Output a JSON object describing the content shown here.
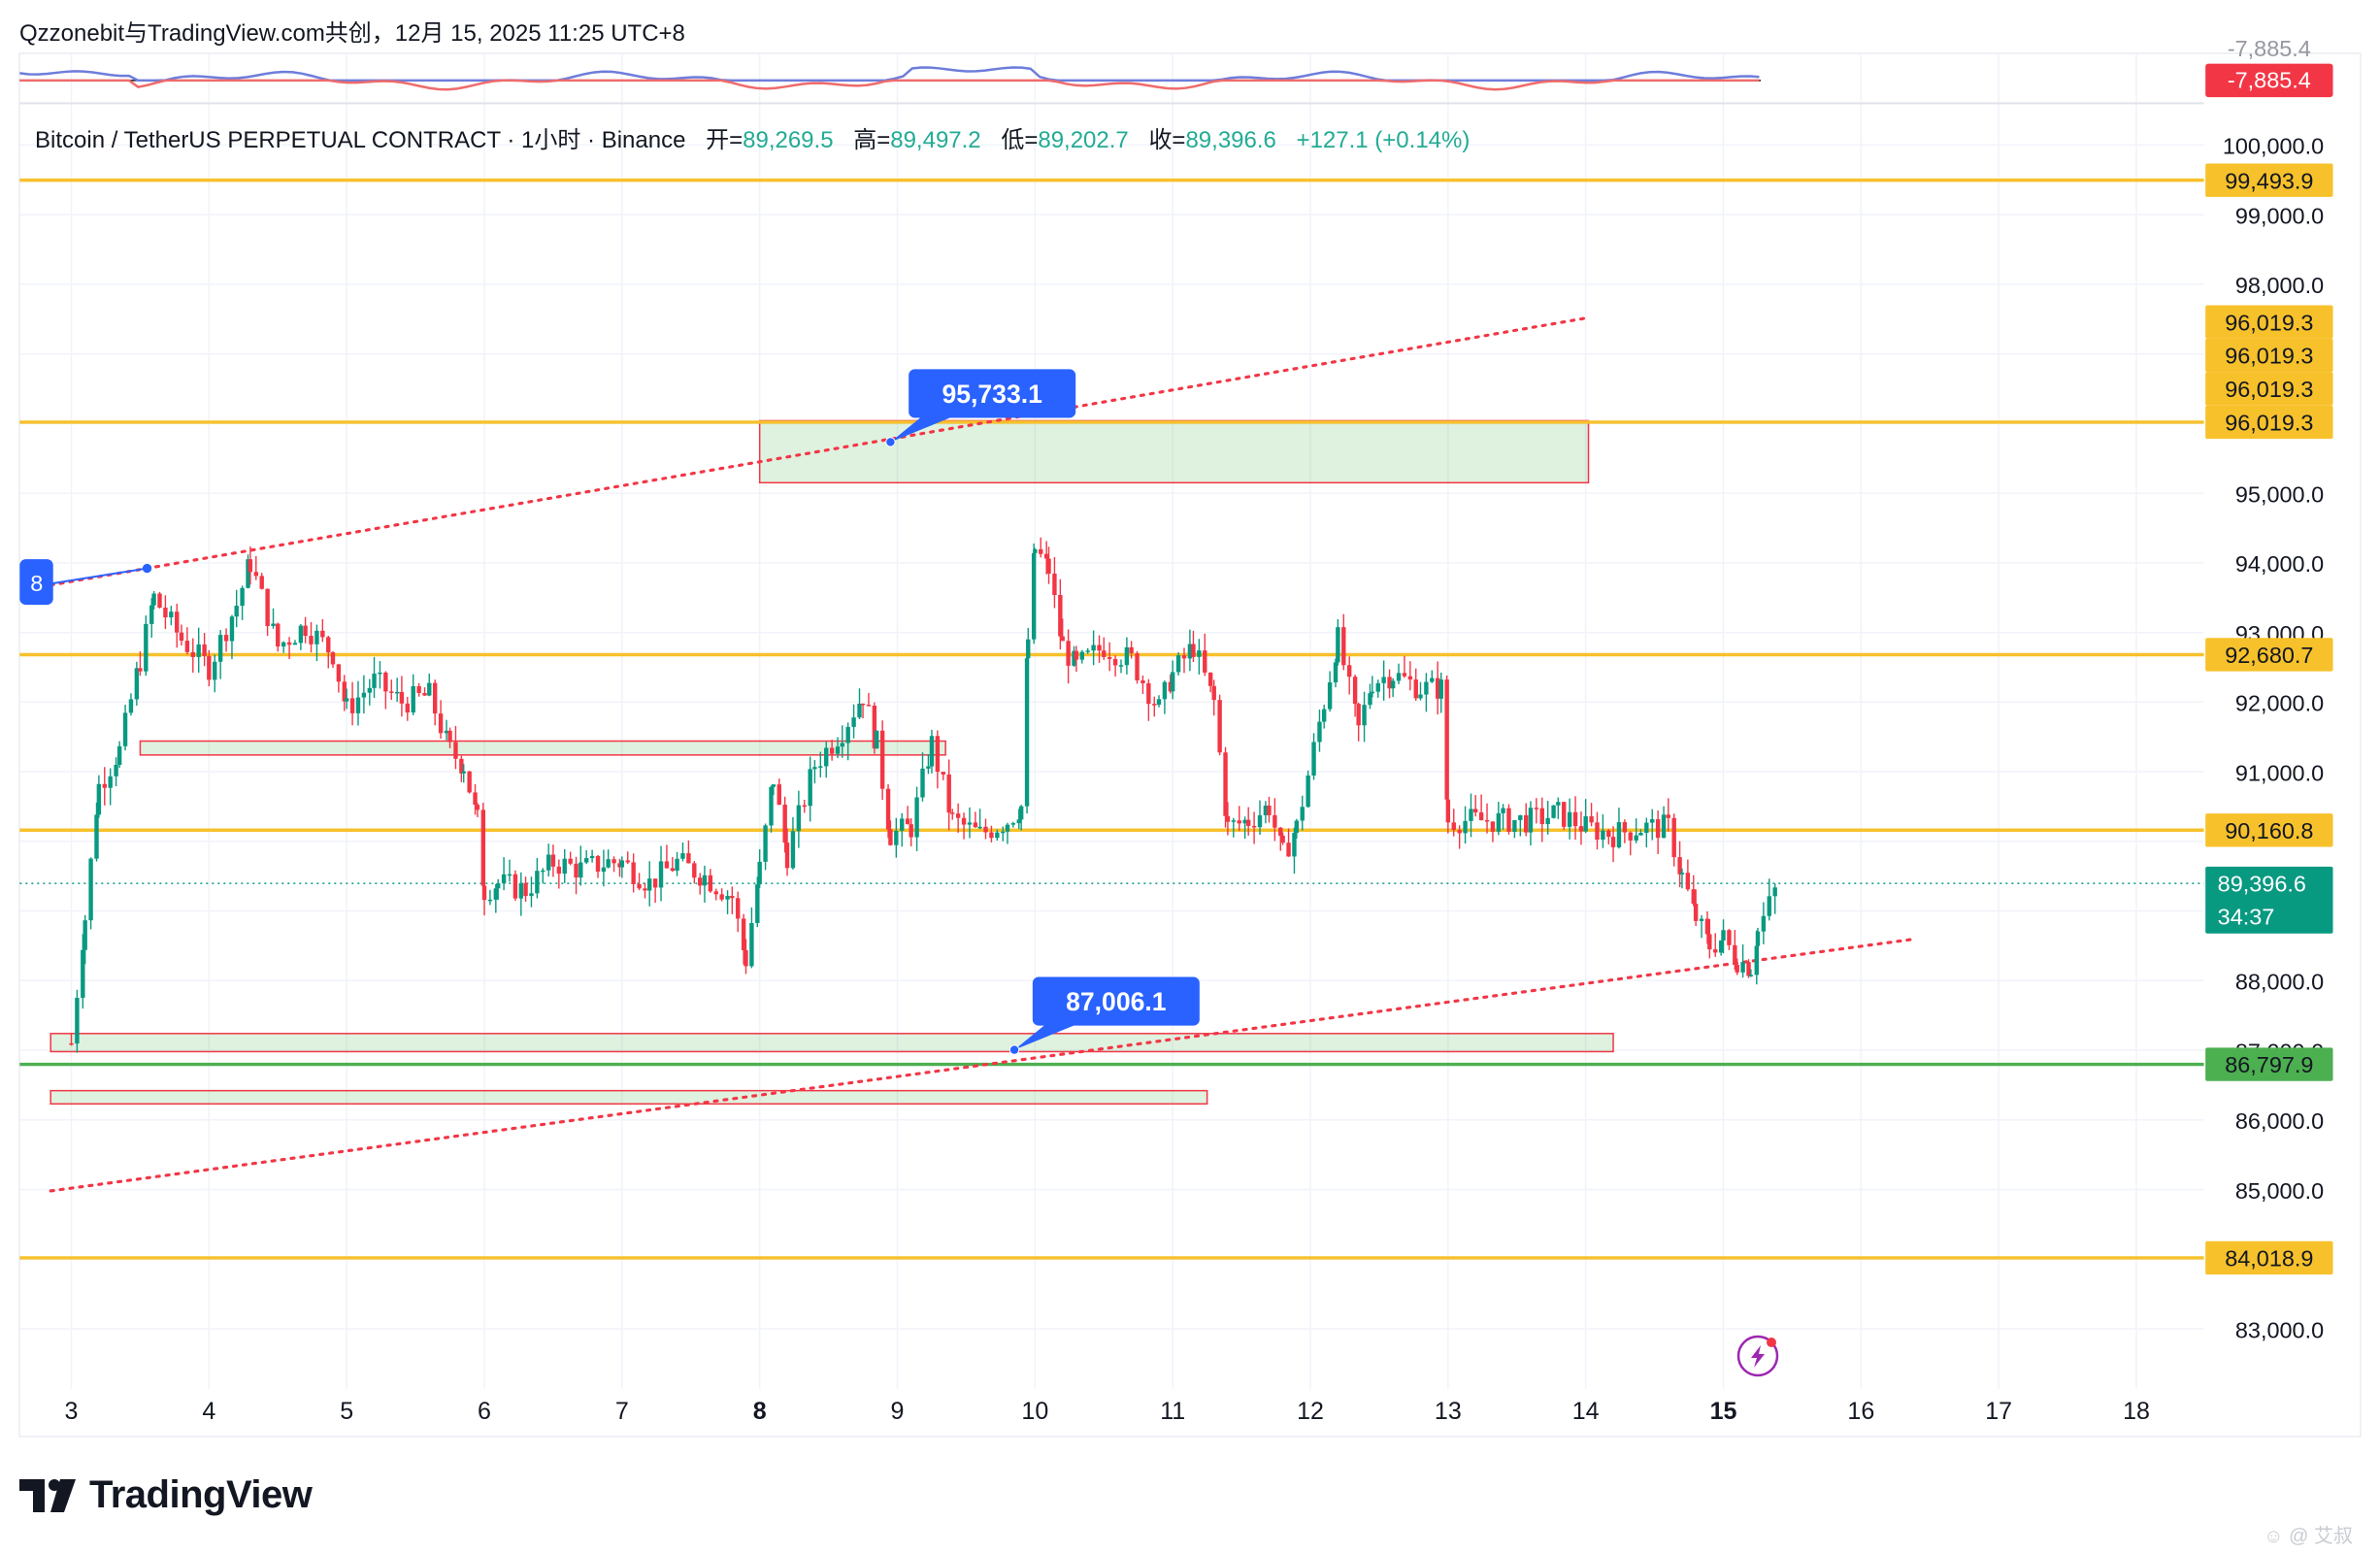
{
  "header": {
    "publish_line": "Qzzonebit与TradingView.com共创，12月 15, 2025 11:25 UTC+8"
  },
  "legend": {
    "symbol": "Bitcoin / TetherUS PERPETUAL CONTRACT · 1小时 · Binance",
    "open_label": "开=",
    "open": "89,269.5",
    "high_label": "高=",
    "high": "89,497.2",
    "low_label": "低=",
    "low": "89,202.7",
    "close_label": "收=",
    "close": "89,396.6",
    "change": "+127.1 (+0.14%)"
  },
  "indicator_panel": {
    "top_value_partial": "-7,885.4",
    "current_value": "-7,885.4",
    "current_value_color": "#f7231e"
  },
  "chart_data": {
    "type": "candlestick",
    "timeframe": "1小时",
    "exchange": "Binance",
    "y_range": [
      82500,
      100600
    ],
    "x_days": [
      "3",
      "4",
      "5",
      "6",
      "7",
      "8",
      "9",
      "10",
      "11",
      "12",
      "13",
      "14",
      "15",
      "16",
      "17",
      "18"
    ],
    "bold_days": [
      "8",
      "15"
    ],
    "y_ticks": [
      "100,000.0",
      "99,000.0",
      "98,000.0",
      "95,000.0",
      "94,000.0",
      "93,000.0",
      "92,000.0",
      "91,000.0",
      "88,000.0",
      "87,000.0",
      "86,000.0",
      "85,000.0",
      "83,000.0"
    ],
    "close_path": [
      [
        3.0,
        87100
      ],
      [
        3.1,
        88900
      ],
      [
        3.2,
        90800
      ],
      [
        3.35,
        91300
      ],
      [
        3.5,
        92600
      ],
      [
        3.6,
        93500
      ],
      [
        3.8,
        92900
      ],
      [
        4.0,
        92500
      ],
      [
        4.2,
        93400
      ],
      [
        4.3,
        94000
      ],
      [
        4.5,
        92800
      ],
      [
        4.7,
        93100
      ],
      [
        4.9,
        92700
      ],
      [
        5.0,
        91900
      ],
      [
        5.2,
        92300
      ],
      [
        5.4,
        92000
      ],
      [
        5.6,
        92100
      ],
      [
        5.75,
        91300
      ],
      [
        5.85,
        91100
      ],
      [
        5.95,
        90300
      ],
      [
        6.0,
        89300
      ],
      [
        6.1,
        89400
      ],
      [
        6.3,
        89300
      ],
      [
        6.5,
        89700
      ],
      [
        6.7,
        89600
      ],
      [
        6.9,
        89700
      ],
      [
        7.0,
        89700
      ],
      [
        7.2,
        89400
      ],
      [
        7.4,
        89700
      ],
      [
        7.6,
        89500
      ],
      [
        7.8,
        89200
      ],
      [
        7.9,
        88300
      ],
      [
        8.0,
        89600
      ],
      [
        8.1,
        90900
      ],
      [
        8.2,
        89800
      ],
      [
        8.4,
        91100
      ],
      [
        8.6,
        91600
      ],
      [
        8.75,
        92100
      ],
      [
        8.85,
        91400
      ],
      [
        8.95,
        90100
      ],
      [
        9.1,
        90200
      ],
      [
        9.25,
        91400
      ],
      [
        9.4,
        90300
      ],
      [
        9.6,
        90100
      ],
      [
        9.8,
        90300
      ],
      [
        9.9,
        90500
      ],
      [
        9.95,
        92900
      ],
      [
        10.0,
        94200
      ],
      [
        10.1,
        93900
      ],
      [
        10.2,
        92800
      ],
      [
        10.3,
        92500
      ],
      [
        10.5,
        92800
      ],
      [
        10.7,
        92600
      ],
      [
        10.9,
        91900
      ],
      [
        11.0,
        92400
      ],
      [
        11.15,
        92800
      ],
      [
        11.3,
        92000
      ],
      [
        11.4,
        90200
      ],
      [
        11.55,
        90300
      ],
      [
        11.7,
        90500
      ],
      [
        11.8,
        89800
      ],
      [
        11.9,
        90200
      ],
      [
        12.1,
        92000
      ],
      [
        12.2,
        92900
      ],
      [
        12.35,
        91600
      ],
      [
        12.45,
        92300
      ],
      [
        12.6,
        92400
      ],
      [
        12.8,
        92200
      ],
      [
        12.95,
        92200
      ],
      [
        13.0,
        90300
      ],
      [
        13.2,
        90300
      ],
      [
        13.4,
        90300
      ],
      [
        13.6,
        90300
      ],
      [
        13.8,
        90400
      ],
      [
        14.0,
        90200
      ],
      [
        14.2,
        90100
      ],
      [
        14.4,
        90200
      ],
      [
        14.6,
        90200
      ],
      [
        14.7,
        89500
      ],
      [
        14.8,
        88900
      ],
      [
        14.9,
        88500
      ],
      [
        15.0,
        88600
      ],
      [
        15.1,
        88300
      ],
      [
        15.2,
        88200
      ],
      [
        15.25,
        88700
      ],
      [
        15.4,
        89397
      ]
    ],
    "current_price": "89,396.6",
    "countdown": "34:37",
    "horizontal_levels": [
      {
        "price": 99493.9,
        "label": "99,493.9",
        "color": "#f7c12b"
      },
      {
        "price": 96019.3,
        "label": "96,019.3",
        "color": "#f7c12b"
      },
      {
        "price": 92680.7,
        "label": "92,680.7",
        "color": "#f7c12b"
      },
      {
        "price": 90160.8,
        "label": "90,160.8",
        "color": "#f7c12b"
      },
      {
        "price": 86797.9,
        "label": "86,797.9",
        "color": "#4caf50"
      },
      {
        "price": 84018.9,
        "label": "84,018.9",
        "color": "#f7c12b"
      }
    ],
    "stacked_labels": [
      "96,019.3",
      "96,019.3",
      "96,019.3"
    ],
    "zones": [
      {
        "x_from": 8.0,
        "x_to": 14.02,
        "price_top": 96040,
        "price_bottom": 95150
      },
      {
        "x_from": 3.5,
        "x_to": 9.35,
        "price_top": 91440,
        "price_bottom": 91240
      },
      {
        "x_from": 2.85,
        "x_to": 14.2,
        "price_top": 87240,
        "price_bottom": 86980
      },
      {
        "x_from": 2.85,
        "x_to": 11.25,
        "price_top": 86420,
        "price_bottom": 86230
      }
    ],
    "trendlines": [
      {
        "from": [
          2.85,
          93680
        ],
        "to": [
          14.02,
          97520
        ],
        "style": "dotted",
        "color": "#f23645"
      },
      {
        "from": [
          2.85,
          84980
        ],
        "to": [
          16.4,
          88600
        ],
        "style": "dotted",
        "color": "#f23645"
      }
    ],
    "callouts": [
      {
        "text": "95,733.1",
        "anchor": [
          8.95,
          95733.1
        ]
      },
      {
        "text": "87,006.1",
        "anchor": [
          9.85,
          87006.1
        ]
      },
      {
        "text": "8",
        "anchor": [
          3.55,
          93920
        ]
      }
    ],
    "up_color": "#089981",
    "down_color": "#f23645",
    "level_color": "#f7c12b",
    "accent_color": "#2962ff"
  },
  "branding": {
    "logo_text": "TradingView",
    "watermark": "☺ @ 艾叔"
  }
}
